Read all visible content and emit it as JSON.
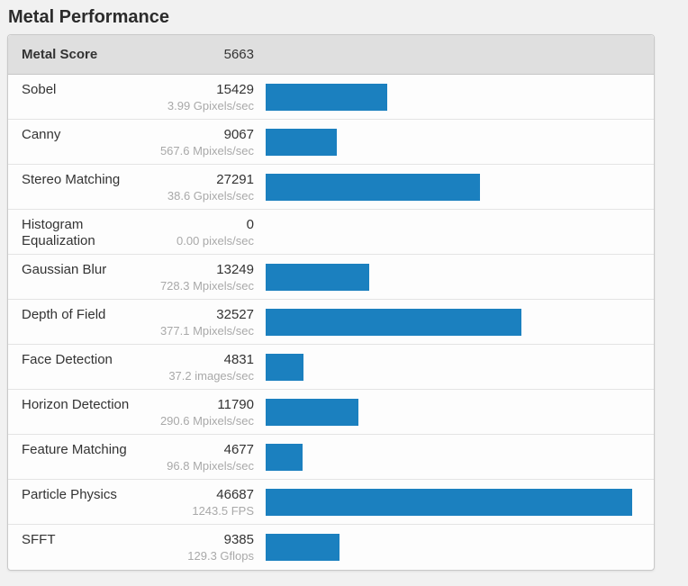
{
  "title": "Metal Performance",
  "header": {
    "label": "Metal Score",
    "score": "5663"
  },
  "chart_data": {
    "type": "bar",
    "orientation": "horizontal",
    "title": "Metal Performance",
    "categories": [
      "Sobel",
      "Canny",
      "Stereo Matching",
      "Histogram Equalization",
      "Gaussian Blur",
      "Depth of Field",
      "Face Detection",
      "Horizon Detection",
      "Feature Matching",
      "Particle Physics",
      "SFFT"
    ],
    "values": [
      15429,
      9067,
      27291,
      0,
      13249,
      32527,
      4831,
      11790,
      4677,
      46687,
      9385
    ],
    "rate_labels": [
      "3.99 Gpixels/sec",
      "567.6 Mpixels/sec",
      "38.6 Gpixels/sec",
      "0.00 pixels/sec",
      "728.3 Mpixels/sec",
      "377.1 Mpixels/sec",
      "37.2 images/sec",
      "290.6 Mpixels/sec",
      "96.8 Mpixels/sec",
      "1243.5 FPS",
      "129.3 Gflops"
    ],
    "xlim": [
      0,
      46687
    ],
    "grid": false,
    "legend": false,
    "bar_color": "#1b80bf"
  },
  "colors": {
    "page_background": "#f1f1f1",
    "table_background": "#fdfdfd",
    "header_background": "#dfdfdf",
    "bar": "#1b80bf",
    "name_text": "#333333",
    "score_text": "#333333",
    "rate_text": "#a9a9a9",
    "table_border": "#c9c9c9",
    "row_divider": "#e4e4e4"
  }
}
